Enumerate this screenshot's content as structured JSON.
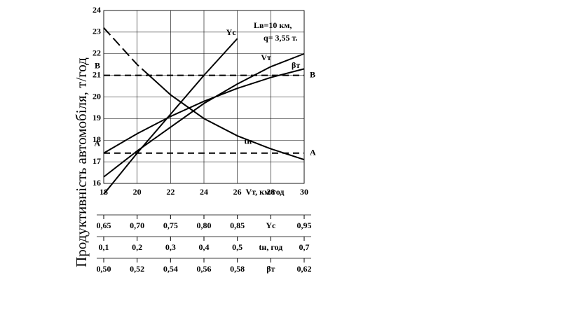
{
  "chart_data": {
    "type": "line",
    "y_label": "Продуктивність автомобіля, т/год",
    "x_label": "Vт, км/год",
    "annotations": [
      "Lв=10 км,",
      "q= 3,55 т."
    ],
    "x": [
      18,
      20,
      22,
      24,
      26,
      28,
      30
    ],
    "xlim": [
      18,
      30
    ],
    "xticks": [
      18,
      20,
      22,
      24,
      26,
      28,
      30
    ],
    "ylim": [
      16,
      24
    ],
    "yticks": [
      16,
      17,
      18,
      19,
      20,
      21,
      22,
      23,
      24
    ],
    "grid": true,
    "series": [
      {
        "name": "Yс",
        "color": "#000",
        "values": [
          15.5,
          17.4,
          19.2,
          21.0,
          22.7,
          null,
          null
        ]
      },
      {
        "name": "Vт",
        "color": "#000",
        "values": [
          16.3,
          17.5,
          18.6,
          19.7,
          20.6,
          21.4,
          22.0
        ]
      },
      {
        "name": "βт",
        "color": "#000",
        "values": [
          17.4,
          18.3,
          19.1,
          19.8,
          20.4,
          20.9,
          21.3
        ]
      },
      {
        "name": "tн",
        "color": "#000",
        "values": [
          23.2,
          21.5,
          20.1,
          19.0,
          18.2,
          17.6,
          17.1
        ]
      }
    ],
    "hlines": [
      {
        "label": "A",
        "value": 17.4
      },
      {
        "label": "B",
        "value": 21
      }
    ],
    "scales": [
      {
        "name": "Yс",
        "lim": [
          0.65,
          0.95
        ],
        "ticks": [
          {
            "value": 0.65,
            "label": "0,65"
          },
          {
            "value": 0.7,
            "label": "0,70"
          },
          {
            "value": 0.75,
            "label": "0,75"
          },
          {
            "value": 0.8,
            "label": "0,80"
          },
          {
            "value": 0.85,
            "label": "0,85"
          },
          {
            "value": 0.95,
            "label": "0,95"
          }
        ]
      },
      {
        "name": "tн, год",
        "lim": [
          0.1,
          0.7
        ],
        "ticks": [
          {
            "value": 0.1,
            "label": "0,1"
          },
          {
            "value": 0.2,
            "label": "0,2"
          },
          {
            "value": 0.3,
            "label": "0,3"
          },
          {
            "value": 0.4,
            "label": "0,4"
          },
          {
            "value": 0.5,
            "label": "0,5"
          },
          {
            "value": 0.7,
            "label": "0,7"
          }
        ]
      },
      {
        "name": "βт",
        "lim": [
          0.5,
          0.62
        ],
        "ticks": [
          {
            "value": 0.5,
            "label": "0,50"
          },
          {
            "value": 0.52,
            "label": "0,52"
          },
          {
            "value": 0.54,
            "label": "0,54"
          },
          {
            "value": 0.56,
            "label": "0,56"
          },
          {
            "value": 0.58,
            "label": "0,58"
          },
          {
            "value": 0.62,
            "label": "0,62"
          }
        ]
      }
    ]
  }
}
